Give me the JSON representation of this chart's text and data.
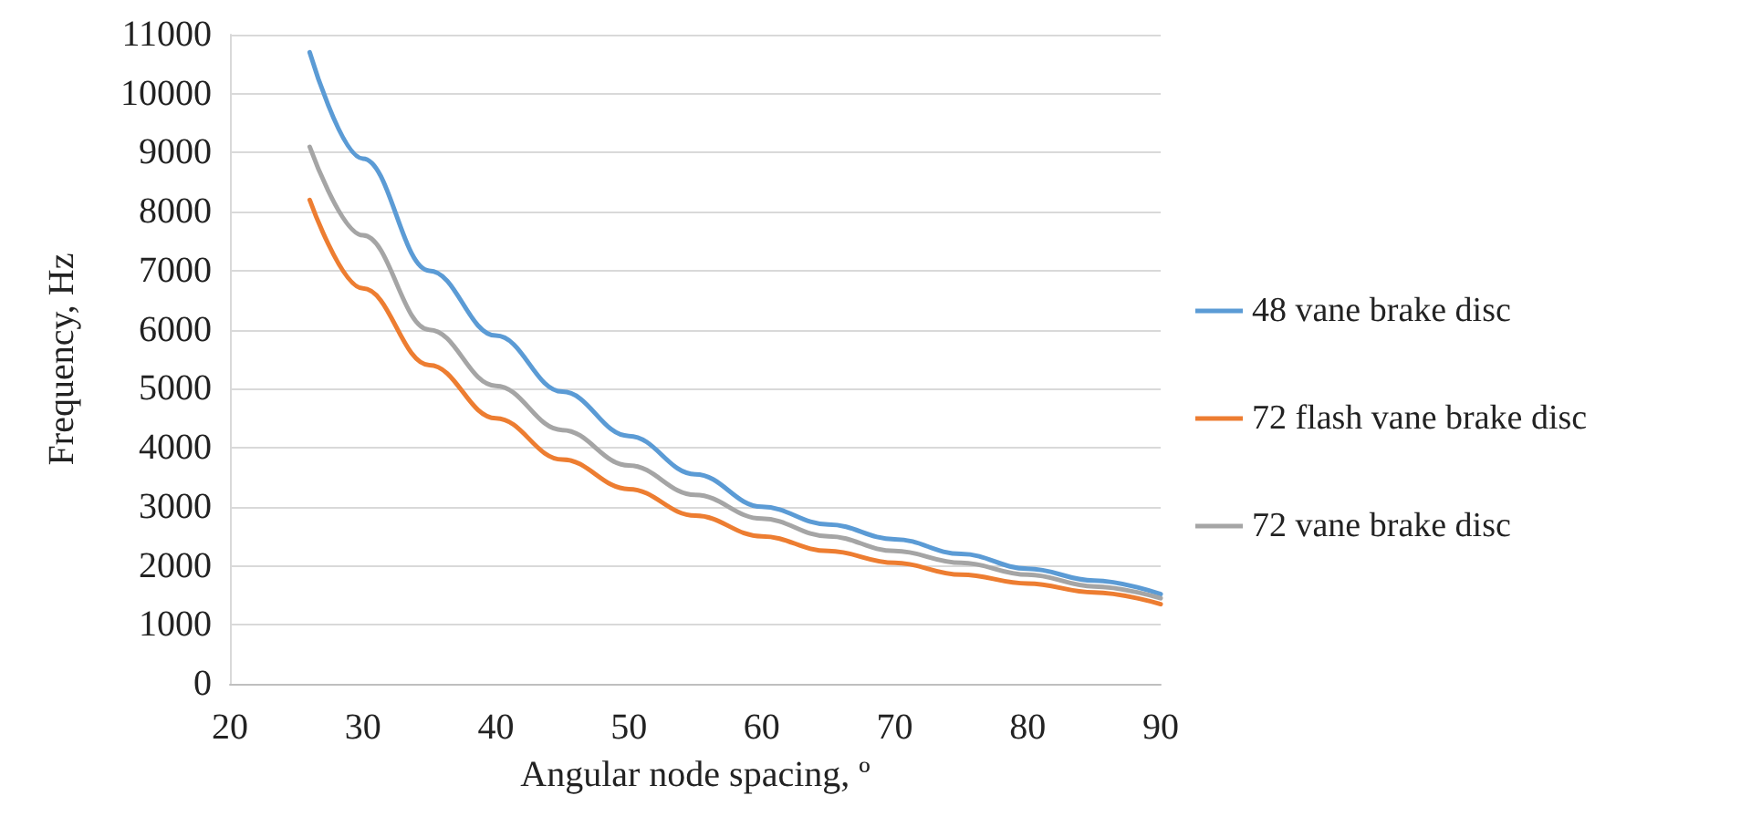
{
  "chart_data": {
    "type": "line",
    "xlabel": "Angular node spacing, º",
    "ylabel": "Frequency, Hz",
    "x": [
      26,
      30,
      35,
      40,
      45,
      50,
      55,
      60,
      65,
      70,
      75,
      80,
      85,
      90
    ],
    "series": [
      {
        "name": "48 vane brake disc",
        "color": "#5b9bd5",
        "values": [
          10700,
          8900,
          7000,
          5900,
          4950,
          4200,
          3550,
          3000,
          2700,
          2450,
          2200,
          1950,
          1750,
          1520
        ]
      },
      {
        "name": "72 flash vane brake disc",
        "color": "#ed7d31",
        "values": [
          8200,
          6700,
          5400,
          4500,
          3800,
          3300,
          2850,
          2500,
          2250,
          2050,
          1850,
          1700,
          1550,
          1350
        ]
      },
      {
        "name": "72 vane brake disc",
        "color": "#a5a5a5",
        "values": [
          9100,
          7600,
          6000,
          5050,
          4300,
          3700,
          3200,
          2800,
          2500,
          2250,
          2050,
          1850,
          1650,
          1450
        ]
      }
    ],
    "xlim": [
      20,
      90
    ],
    "xticks": [
      20,
      30,
      40,
      50,
      60,
      70,
      80,
      90
    ],
    "ylim": [
      0,
      11000
    ],
    "yticks": [
      0,
      1000,
      2000,
      3000,
      4000,
      5000,
      6000,
      7000,
      8000,
      9000,
      10000,
      11000
    ],
    "grid": "y",
    "legend": "right",
    "marker": "none",
    "line_style": "solid"
  }
}
